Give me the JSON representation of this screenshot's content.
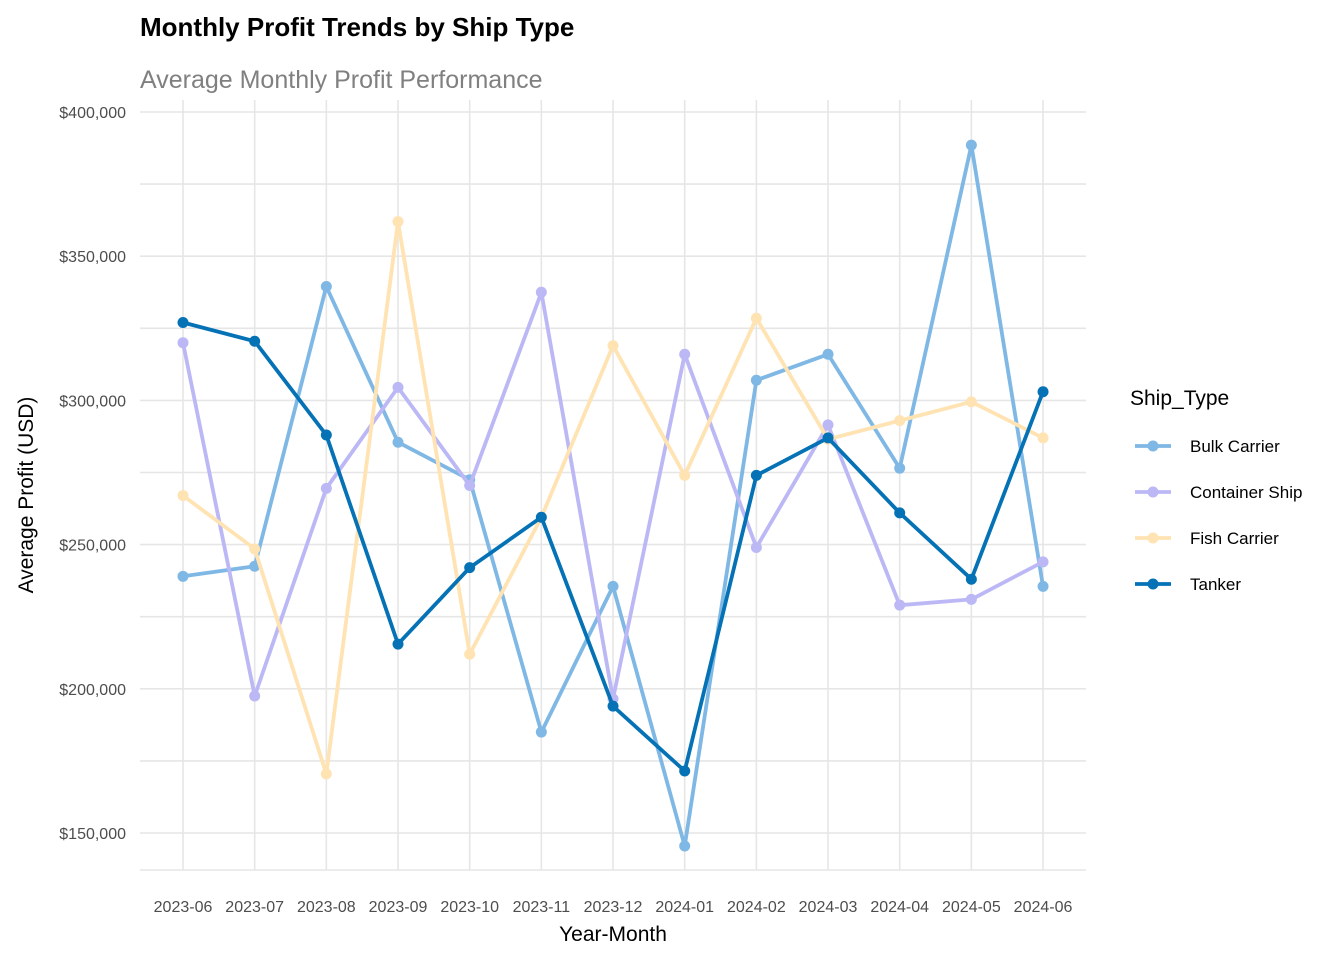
{
  "chart_data": {
    "type": "line",
    "title": "Monthly Profit Trends by Ship Type",
    "subtitle": "Average Monthly Profit Performance",
    "xlabel": "Year-Month",
    "ylabel": "Average Profit (USD)",
    "ylim": [
      140000,
      400000
    ],
    "yticks": [
      150000,
      200000,
      250000,
      300000,
      350000,
      400000
    ],
    "ytick_labels": [
      "$150,000",
      "$200,000",
      "$250,000",
      "$300,000",
      "$350,000",
      "$400,000"
    ],
    "categories": [
      "2023-06",
      "2023-07",
      "2023-08",
      "2023-09",
      "2023-10",
      "2023-11",
      "2023-12",
      "2024-01",
      "2024-02",
      "2024-03",
      "2024-04",
      "2024-05",
      "2024-06"
    ],
    "grid": true,
    "legend": {
      "title": "Ship_Type",
      "position": "right"
    },
    "series": [
      {
        "name": "Bulk Carrier",
        "color": "#7FB8E5",
        "values": [
          239000,
          242500,
          339500,
          285500,
          272500,
          185000,
          235500,
          145500,
          307000,
          316000,
          276500,
          388500,
          235500
        ]
      },
      {
        "name": "Container Ship",
        "color": "#BBB8F5",
        "values": [
          320000,
          197500,
          269500,
          304500,
          270500,
          337500,
          196500,
          316000,
          249000,
          291500,
          229000,
          231000,
          244000
        ]
      },
      {
        "name": "Fish Carrier",
        "color": "#FFE3B3",
        "values": [
          267000,
          248500,
          170500,
          362000,
          212000,
          259500,
          319000,
          274000,
          328500,
          286500,
          293000,
          299500,
          287000
        ]
      },
      {
        "name": "Tanker",
        "color": "#0572B6",
        "values": [
          327000,
          320500,
          288000,
          215500,
          242000,
          259500,
          194000,
          171500,
          274000,
          287000,
          261000,
          238000,
          303000
        ]
      }
    ]
  }
}
